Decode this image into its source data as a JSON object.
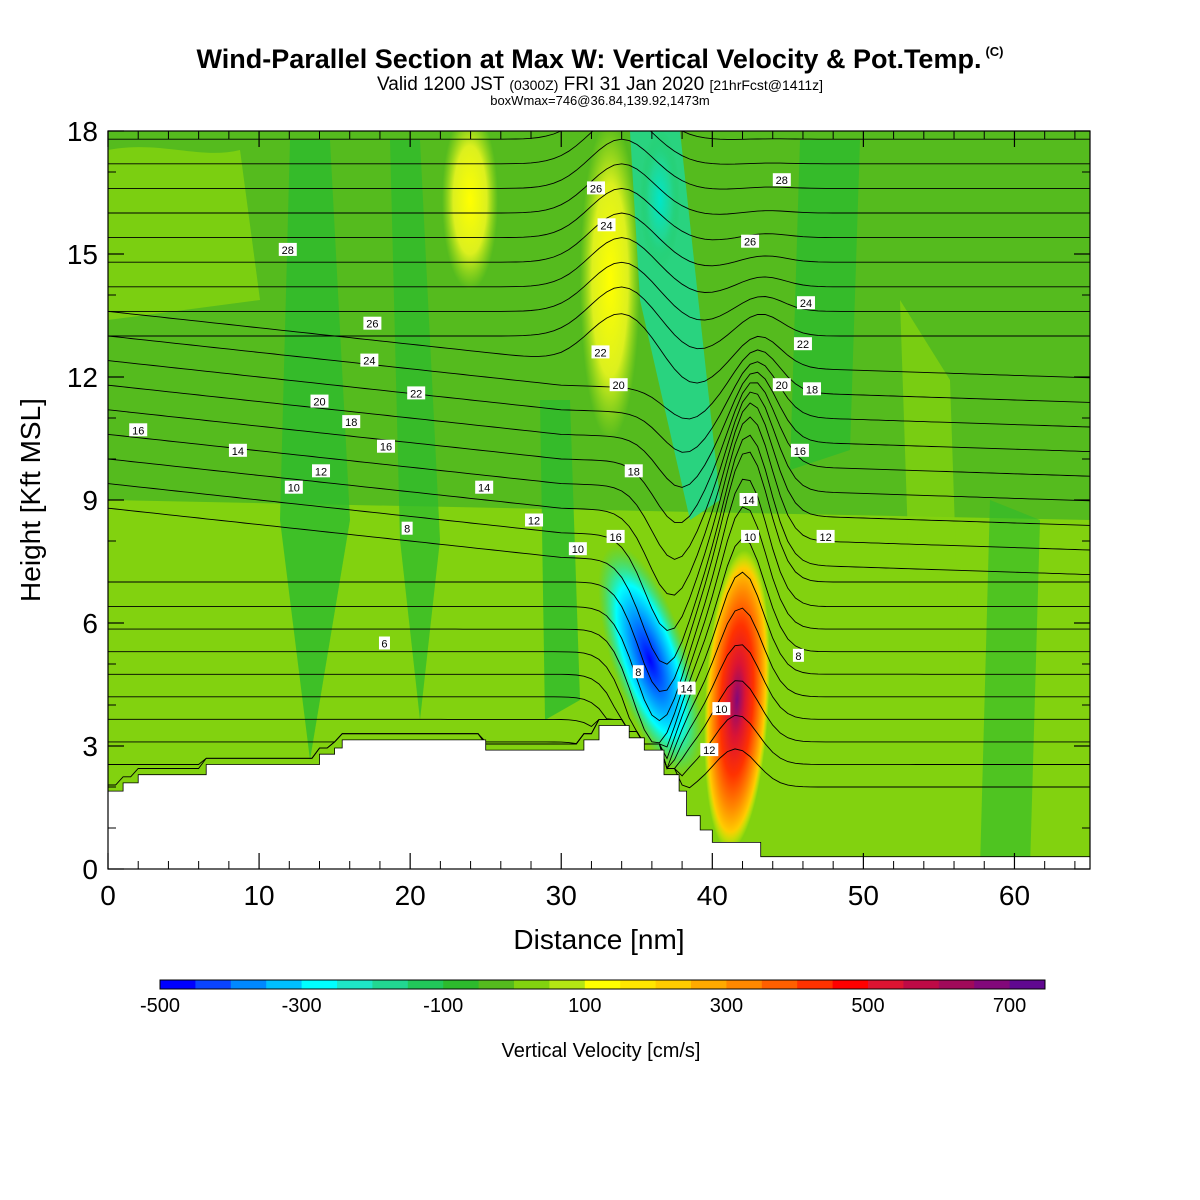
{
  "chart_data": {
    "type": "heatmap",
    "title": "Wind-Parallel Section at Max W: Vertical Velocity & Pot.Temp.",
    "title_mark": "(C)",
    "subtitle": {
      "main": "Valid 1200 JST ",
      "utc": "(0300Z)",
      "rest": " FRI 31 Jan 2020 ",
      "fcst": "[21hrFcst@1411z]"
    },
    "subtitle2": "boxWmax=746@36.84,139.92,1473m",
    "xlabel": "Distance [nm]",
    "ylabel": "Height [Kft MSL]",
    "xlim": [
      0,
      65
    ],
    "ylim": [
      0,
      18
    ],
    "xticks": [
      0,
      10,
      20,
      30,
      40,
      50,
      60
    ],
    "yticks": [
      0,
      3,
      6,
      9,
      12,
      15,
      18
    ],
    "colorbar": {
      "title": "Vertical Velocity [cm/s]",
      "min": -500,
      "max": 750,
      "step": 50,
      "tick_values": [
        -500,
        -300,
        -100,
        100,
        300,
        500,
        700
      ],
      "colors": [
        "#0000ff",
        "#0a44ff",
        "#0088ff",
        "#00bfff",
        "#00ffff",
        "#1ee6c8",
        "#22d791",
        "#22c85a",
        "#2dbb2d",
        "#55bb1e",
        "#82d20f",
        "#b4e614",
        "#ffff00",
        "#ffe600",
        "#ffcc00",
        "#ffaa00",
        "#ff8800",
        "#ff5f00",
        "#ff3200",
        "#ff0000",
        "#dc1432",
        "#be0a46",
        "#a00a5a",
        "#82087a",
        "#600890"
      ]
    },
    "terrain_profile": [
      [
        0,
        1.9
      ],
      [
        1,
        1.9
      ],
      [
        1,
        2.1
      ],
      [
        2,
        2.1
      ],
      [
        2,
        2.3
      ],
      [
        6.5,
        2.3
      ],
      [
        6.5,
        2.55
      ],
      [
        14,
        2.55
      ],
      [
        14,
        2.8
      ],
      [
        15,
        2.8
      ],
      [
        15,
        2.95
      ],
      [
        15.5,
        2.95
      ],
      [
        15.5,
        3.15
      ],
      [
        25,
        3.15
      ],
      [
        25,
        2.9
      ],
      [
        31.5,
        2.9
      ],
      [
        31.5,
        3.15
      ],
      [
        32.5,
        3.15
      ],
      [
        32.5,
        3.5
      ],
      [
        34.5,
        3.5
      ],
      [
        34.5,
        3.2
      ],
      [
        35.5,
        3.2
      ],
      [
        35.5,
        2.9
      ],
      [
        36.8,
        2.9
      ],
      [
        36.8,
        2.3
      ],
      [
        37.8,
        2.3
      ],
      [
        37.8,
        1.9
      ],
      [
        38.3,
        1.9
      ],
      [
        38.3,
        1.3
      ],
      [
        39.2,
        1.3
      ],
      [
        39.2,
        0.95
      ],
      [
        40,
        0.95
      ],
      [
        40,
        0.65
      ],
      [
        43.2,
        0.65
      ],
      [
        43.2,
        0.3
      ],
      [
        65,
        0.3
      ]
    ],
    "theta_labels": [
      {
        "x": 2,
        "y": 10.7,
        "t": "16"
      },
      {
        "x": 8.6,
        "y": 10.2,
        "t": "14"
      },
      {
        "x": 14.1,
        "y": 9.7,
        "t": "12"
      },
      {
        "x": 12.3,
        "y": 9.3,
        "t": "10"
      },
      {
        "x": 19.8,
        "y": 8.3,
        "t": "8"
      },
      {
        "x": 18.3,
        "y": 5.5,
        "t": "6"
      },
      {
        "x": 11.9,
        "y": 15.1,
        "t": "28"
      },
      {
        "x": 17.5,
        "y": 13.3,
        "t": "26"
      },
      {
        "x": 17.3,
        "y": 12.4,
        "t": "24"
      },
      {
        "x": 14,
        "y": 11.4,
        "t": "20"
      },
      {
        "x": 20.4,
        "y": 11.6,
        "t": "22"
      },
      {
        "x": 16.1,
        "y": 10.9,
        "t": "18"
      },
      {
        "x": 18.4,
        "y": 10.3,
        "t": "16"
      },
      {
        "x": 24.9,
        "y": 9.3,
        "t": "14"
      },
      {
        "x": 28.2,
        "y": 8.5,
        "t": "12"
      },
      {
        "x": 31.1,
        "y": 7.8,
        "t": "10"
      },
      {
        "x": 33.6,
        "y": 8.1,
        "t": "16"
      },
      {
        "x": 35.1,
        "y": 4.8,
        "t": "8"
      },
      {
        "x": 38.3,
        "y": 4.4,
        "t": "14"
      },
      {
        "x": 40.6,
        "y": 3.9,
        "t": "10"
      },
      {
        "x": 39.8,
        "y": 2.9,
        "t": "12"
      },
      {
        "x": 34.8,
        "y": 9.7,
        "t": "18"
      },
      {
        "x": 33.8,
        "y": 11.8,
        "t": "20"
      },
      {
        "x": 32.6,
        "y": 12.6,
        "t": "22"
      },
      {
        "x": 33,
        "y": 15.7,
        "t": "24"
      },
      {
        "x": 32.3,
        "y": 16.6,
        "t": "26"
      },
      {
        "x": 44.6,
        "y": 16.8,
        "t": "28"
      },
      {
        "x": 42.5,
        "y": 15.3,
        "t": "26"
      },
      {
        "x": 46.2,
        "y": 13.8,
        "t": "24"
      },
      {
        "x": 46,
        "y": 12.8,
        "t": "22"
      },
      {
        "x": 44.6,
        "y": 11.8,
        "t": "20"
      },
      {
        "x": 46.6,
        "y": 11.7,
        "t": "18"
      },
      {
        "x": 45.8,
        "y": 10.2,
        "t": "16"
      },
      {
        "x": 42.4,
        "y": 9,
        "t": "14"
      },
      {
        "x": 42.5,
        "y": 8.1,
        "t": "10"
      },
      {
        "x": 47.5,
        "y": 8.1,
        "t": "12"
      },
      {
        "x": 45.7,
        "y": 5.2,
        "t": "8"
      }
    ]
  }
}
